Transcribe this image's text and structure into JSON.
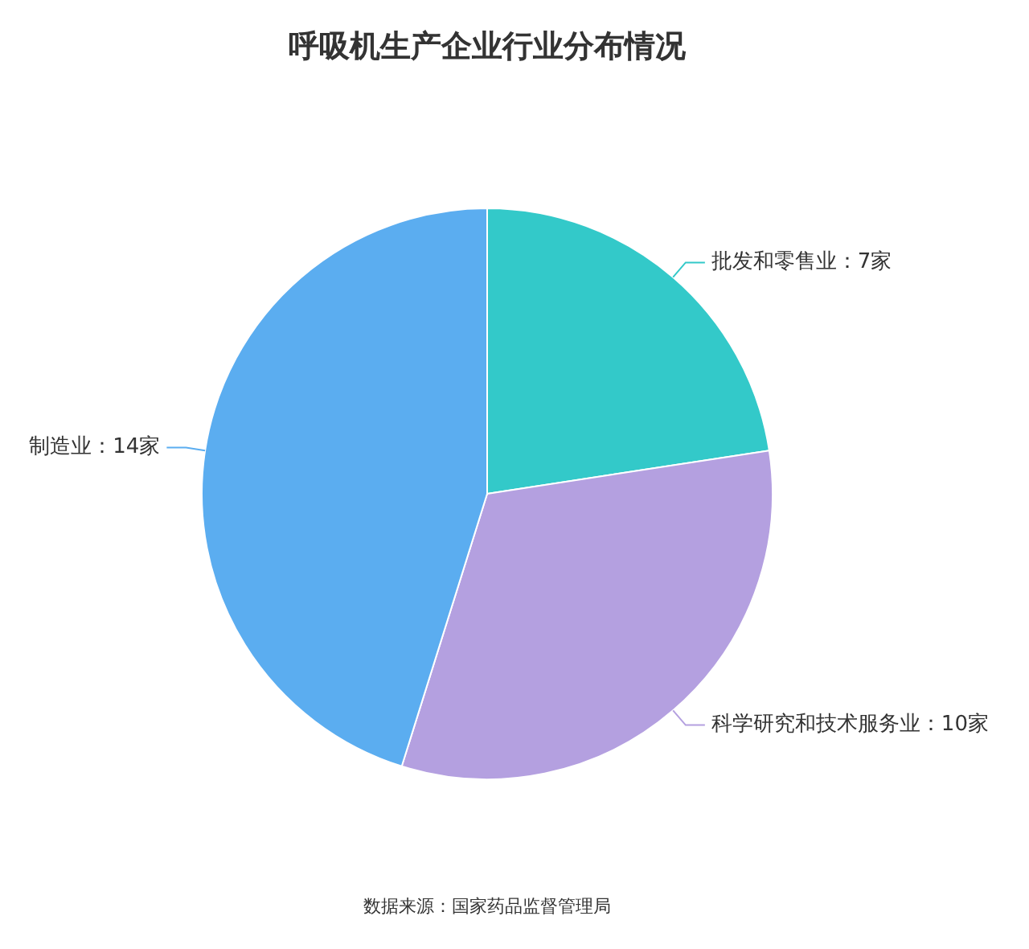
{
  "chart_data": {
    "type": "pie",
    "title": "呼吸机生产企业行业分布情况",
    "categories": [
      "批发和零售业",
      "科学研究和技术服务业",
      "制造业"
    ],
    "values": [
      7,
      10,
      14
    ],
    "value_labels": [
      "7家",
      "10家",
      "14家"
    ],
    "colors": [
      "#33c9c9",
      "#b4a0e0",
      "#5badf0"
    ],
    "legend": false,
    "annotations": [
      "数据来源：国家药品监督管理局"
    ]
  }
}
